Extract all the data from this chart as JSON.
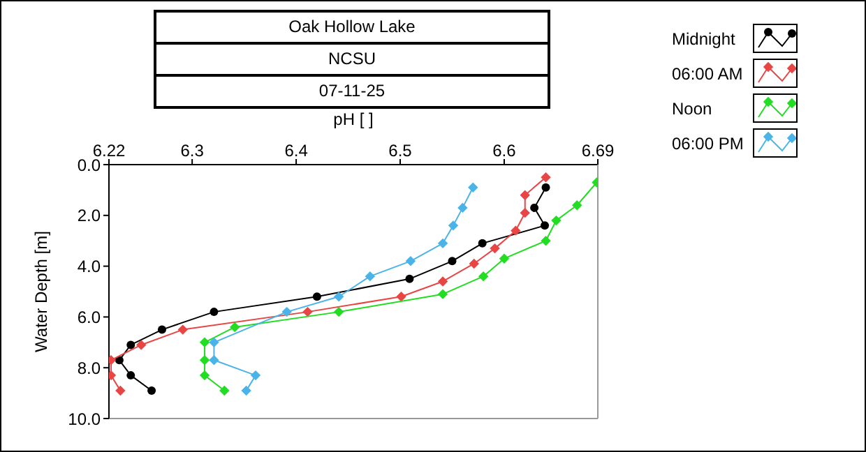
{
  "chart_data": {
    "type": "line",
    "title": "Oak Hollow Lake",
    "subtitle": "NCSU",
    "annotations": [
      "07-11-25"
    ],
    "xlabel": "pH [ ]",
    "ylabel": "Water Depth [m]",
    "xlim": [
      6.22,
      6.69
    ],
    "xticks": [
      6.22,
      6.3,
      6.4,
      6.5,
      6.6,
      6.69
    ],
    "ylim": [
      10,
      0
    ],
    "yticks": [
      {
        "value": 0,
        "label": "0.0"
      },
      {
        "value": 2,
        "label": "2.0"
      },
      {
        "value": 4,
        "label": "4.0"
      },
      {
        "value": 6,
        "label": "6.0"
      },
      {
        "value": 8,
        "label": "8.0"
      },
      {
        "value": 10,
        "label": "10.0"
      }
    ],
    "legend": "top right",
    "line_style": "solid",
    "series": [
      {
        "name": "Midnight",
        "color": "#000000",
        "marker": "circle",
        "x": [
          6.64,
          6.629,
          6.639,
          6.579,
          6.55,
          6.509,
          6.42,
          6.321,
          6.271,
          6.241,
          6.23,
          6.241,
          6.261
        ],
        "values": [
          0.9,
          1.7,
          2.4,
          3.1,
          3.8,
          4.5,
          5.2,
          5.8,
          6.5,
          7.1,
          7.7,
          8.3,
          8.9
        ]
      },
      {
        "name": "06:00 AM",
        "color": "#e84545",
        "marker": "diamond",
        "x": [
          6.64,
          6.62,
          6.62,
          6.611,
          6.591,
          6.571,
          6.541,
          6.501,
          6.411,
          6.291,
          6.251,
          6.222,
          6.222,
          6.231
        ],
        "values": [
          0.5,
          1.2,
          1.9,
          2.6,
          3.3,
          3.9,
          4.6,
          5.2,
          5.8,
          6.5,
          7.1,
          7.7,
          8.3,
          8.9
        ]
      },
      {
        "name": "Noon",
        "color": "#22dd22",
        "marker": "diamond",
        "x": [
          6.689,
          6.67,
          6.65,
          6.64,
          6.6,
          6.58,
          6.541,
          6.441,
          6.341,
          6.312,
          6.312,
          6.312,
          6.331
        ],
        "values": [
          0.7,
          1.6,
          2.2,
          3.0,
          3.7,
          4.4,
          5.1,
          5.8,
          6.4,
          7.0,
          7.7,
          8.3,
          8.9
        ]
      },
      {
        "name": "06:00 PM",
        "color": "#4ab4e8",
        "marker": "diamond",
        "x": [
          6.57,
          6.56,
          6.551,
          6.541,
          6.51,
          6.471,
          6.441,
          6.391,
          6.321,
          6.321,
          6.361,
          6.352
        ],
        "values": [
          0.9,
          1.7,
          2.4,
          3.1,
          3.8,
          4.4,
          5.2,
          5.8,
          7.0,
          7.7,
          8.3,
          8.9
        ]
      }
    ]
  }
}
